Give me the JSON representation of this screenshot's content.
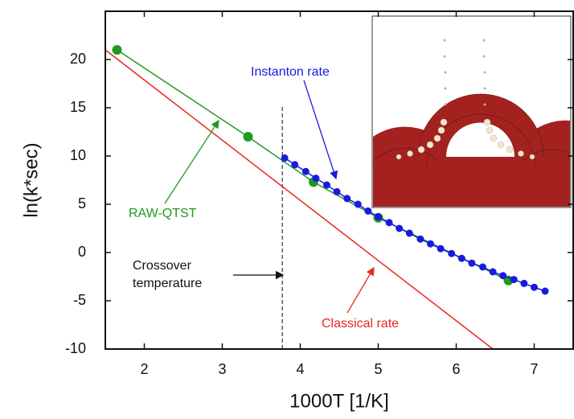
{
  "chart_data": {
    "type": "line",
    "xlabel": "1000T [1/K]",
    "ylabel": "ln(k*sec)",
    "xlim": [
      1.5,
      7.5
    ],
    "ylim": [
      -10,
      25
    ],
    "xticks": [
      2,
      3,
      4,
      5,
      6,
      7
    ],
    "yticks": [
      -10,
      -5,
      0,
      5,
      10,
      15,
      20
    ],
    "series": [
      {
        "name": "Classical rate",
        "color": "#e8271e",
        "markers": false,
        "x": [
          1.5,
          6.47
        ],
        "values": [
          21,
          -10
        ]
      },
      {
        "name": "RAW-QTST",
        "color": "#1f9a1f",
        "markers": true,
        "x": [
          1.65,
          3.33,
          4.17,
          5.0,
          6.67
        ],
        "values": [
          21,
          12,
          7.3,
          3.6,
          -2.9
        ]
      },
      {
        "name": "Instanton rate",
        "color": "#1a1adf",
        "markers": true,
        "x": [
          3.8,
          3.93,
          4.07,
          4.2,
          4.34,
          4.47,
          4.6,
          4.74,
          4.87,
          5.0,
          5.14,
          5.27,
          5.4,
          5.54,
          5.67,
          5.8,
          5.94,
          6.07,
          6.2,
          6.34,
          6.47,
          6.6,
          6.74,
          6.87,
          7.0,
          7.14
        ],
        "values": [
          9.8,
          9.1,
          8.4,
          7.7,
          7.0,
          6.3,
          5.6,
          5.0,
          4.3,
          3.7,
          3.1,
          2.5,
          2.0,
          1.4,
          0.9,
          0.4,
          -0.1,
          -0.6,
          -1.1,
          -1.5,
          -2.0,
          -2.4,
          -2.8,
          -3.2,
          -3.6,
          -4.0
        ]
      }
    ],
    "crossover": {
      "x": 3.77,
      "label": [
        "Crossover",
        "temperature"
      ]
    }
  }
}
